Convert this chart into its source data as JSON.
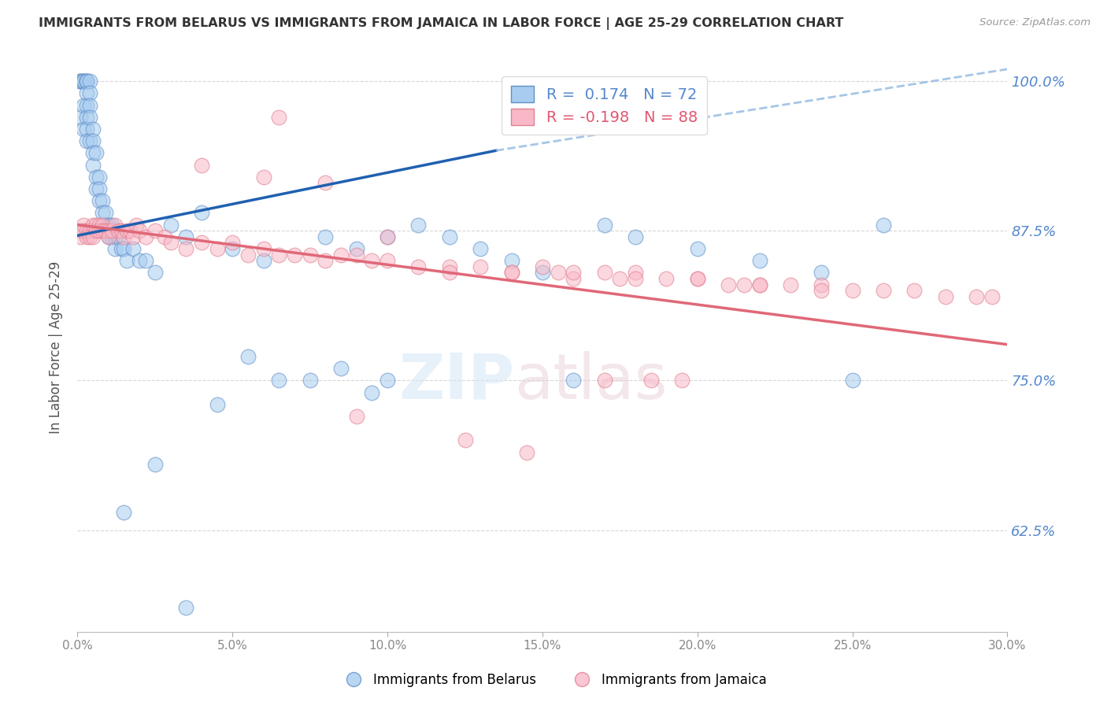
{
  "title": "IMMIGRANTS FROM BELARUS VS IMMIGRANTS FROM JAMAICA IN LABOR FORCE | AGE 25-29 CORRELATION CHART",
  "source": "Source: ZipAtlas.com",
  "ylabel": "In Labor Force | Age 25-29",
  "x_min": 0.0,
  "x_max": 0.3,
  "y_min": 0.54,
  "y_max": 1.015,
  "y_ticks": [
    0.625,
    0.75,
    0.875,
    1.0
  ],
  "y_tick_labels": [
    "62.5%",
    "75.0%",
    "87.5%",
    "100.0%"
  ],
  "x_ticks": [
    0.0,
    0.05,
    0.1,
    0.15,
    0.2,
    0.25,
    0.3
  ],
  "x_tick_labels": [
    "0.0%",
    "5.0%",
    "10.0%",
    "15.0%",
    "20.0%",
    "25.0%",
    "30.0%"
  ],
  "belarus_color": "#A8CCF0",
  "jamaica_color": "#F8B8C8",
  "belarus_edge": "#6090C8",
  "jamaica_edge": "#E08090",
  "trend_blue": "#2060B0",
  "trend_pink": "#E06878",
  "trend_blue_dash": "#90B8E0",
  "R_belarus": 0.174,
  "N_belarus": 72,
  "R_jamaica": -0.198,
  "N_jamaica": 88,
  "background": "#FFFFFF",
  "grid_color": "#CCCCCC",
  "axis_label_color": "#5588CC",
  "title_color": "#333333",
  "belarus_x": [
    0.001,
    0.001,
    0.001,
    0.001,
    0.002,
    0.002,
    0.002,
    0.002,
    0.002,
    0.003,
    0.003,
    0.003,
    0.003,
    0.003,
    0.003,
    0.003,
    0.003,
    0.004,
    0.004,
    0.004,
    0.004,
    0.004,
    0.005,
    0.005,
    0.005,
    0.005,
    0.006,
    0.006,
    0.006,
    0.007,
    0.007,
    0.007,
    0.008,
    0.008,
    0.009,
    0.009,
    0.01,
    0.01,
    0.011,
    0.011,
    0.012,
    0.012,
    0.013,
    0.014,
    0.015,
    0.016,
    0.018,
    0.02,
    0.022,
    0.025,
    0.03,
    0.035,
    0.04,
    0.05,
    0.06,
    0.08,
    0.09,
    0.1,
    0.1,
    0.11,
    0.12,
    0.13,
    0.14,
    0.15,
    0.16,
    0.17,
    0.18,
    0.2,
    0.22,
    0.24,
    0.25,
    0.26
  ],
  "belarus_y": [
    1.0,
    1.0,
    1.0,
    0.97,
    1.0,
    1.0,
    1.0,
    0.98,
    0.96,
    1.0,
    1.0,
    1.0,
    0.99,
    0.98,
    0.97,
    0.96,
    0.95,
    1.0,
    0.99,
    0.98,
    0.97,
    0.95,
    0.96,
    0.95,
    0.94,
    0.93,
    0.94,
    0.92,
    0.91,
    0.92,
    0.91,
    0.9,
    0.9,
    0.89,
    0.89,
    0.88,
    0.88,
    0.87,
    0.88,
    0.87,
    0.87,
    0.86,
    0.87,
    0.86,
    0.86,
    0.85,
    0.86,
    0.85,
    0.85,
    0.84,
    0.88,
    0.87,
    0.89,
    0.86,
    0.85,
    0.87,
    0.86,
    0.87,
    0.75,
    0.88,
    0.87,
    0.86,
    0.85,
    0.84,
    0.75,
    0.88,
    0.87,
    0.86,
    0.85,
    0.84,
    0.75,
    0.88
  ],
  "belarus_y_low": [
    0.64,
    0.68,
    0.56,
    0.75,
    0.76,
    0.74,
    0.77,
    0.75,
    0.73
  ],
  "belarus_x_low": [
    0.015,
    0.025,
    0.035,
    0.075,
    0.085,
    0.095,
    0.055,
    0.065,
    0.045
  ],
  "jamaica_x": [
    0.001,
    0.001,
    0.002,
    0.002,
    0.003,
    0.003,
    0.004,
    0.004,
    0.005,
    0.005,
    0.006,
    0.006,
    0.007,
    0.007,
    0.008,
    0.008,
    0.009,
    0.01,
    0.01,
    0.011,
    0.012,
    0.013,
    0.014,
    0.015,
    0.016,
    0.017,
    0.018,
    0.019,
    0.02,
    0.022,
    0.025,
    0.028,
    0.03,
    0.035,
    0.04,
    0.045,
    0.05,
    0.055,
    0.06,
    0.065,
    0.07,
    0.075,
    0.08,
    0.085,
    0.09,
    0.095,
    0.1,
    0.11,
    0.12,
    0.13,
    0.14,
    0.15,
    0.155,
    0.16,
    0.17,
    0.175,
    0.18,
    0.19,
    0.2,
    0.21,
    0.215,
    0.22,
    0.23,
    0.24,
    0.25,
    0.26,
    0.27,
    0.28,
    0.29,
    0.295,
    0.04,
    0.06,
    0.08,
    0.1,
    0.12,
    0.14,
    0.16,
    0.18,
    0.2,
    0.22,
    0.24,
    0.17,
    0.185,
    0.195,
    0.065,
    0.09,
    0.125,
    0.145
  ],
  "jamaica_y": [
    0.875,
    0.87,
    0.88,
    0.875,
    0.875,
    0.87,
    0.875,
    0.87,
    0.88,
    0.87,
    0.88,
    0.875,
    0.88,
    0.875,
    0.88,
    0.875,
    0.875,
    0.875,
    0.87,
    0.875,
    0.88,
    0.875,
    0.875,
    0.87,
    0.875,
    0.875,
    0.87,
    0.88,
    0.875,
    0.87,
    0.875,
    0.87,
    0.865,
    0.86,
    0.865,
    0.86,
    0.865,
    0.855,
    0.86,
    0.855,
    0.855,
    0.855,
    0.85,
    0.855,
    0.855,
    0.85,
    0.85,
    0.845,
    0.845,
    0.845,
    0.84,
    0.845,
    0.84,
    0.835,
    0.84,
    0.835,
    0.84,
    0.835,
    0.835,
    0.83,
    0.83,
    0.83,
    0.83,
    0.83,
    0.825,
    0.825,
    0.825,
    0.82,
    0.82,
    0.82,
    0.93,
    0.92,
    0.915,
    0.87,
    0.84,
    0.84,
    0.84,
    0.835,
    0.835,
    0.83,
    0.825,
    0.75,
    0.75,
    0.75,
    0.97,
    0.72,
    0.7,
    0.69
  ]
}
